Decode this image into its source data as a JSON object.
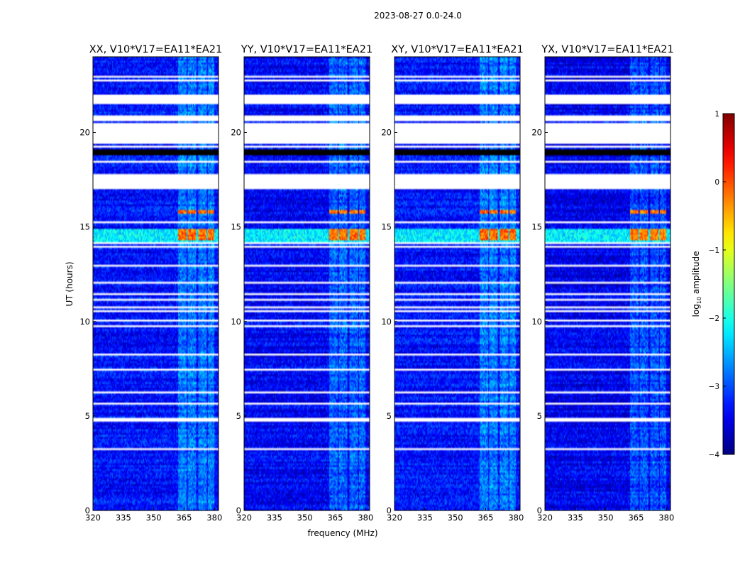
{
  "figure": {
    "suptitle": "2023-08-27 0.0-24.0"
  },
  "chart_data": {
    "type": "heatmap",
    "title": "2023-08-27 0.0-24.0",
    "xlabel": "frequency (MHz)",
    "ylabel": "UT (hours)",
    "xlim": [
      320,
      382
    ],
    "ylim": [
      0,
      24
    ],
    "xticks": [
      320,
      335,
      350,
      365,
      380
    ],
    "yticks": [
      0,
      5,
      10,
      15,
      20
    ],
    "colorbar": {
      "label_prefix": "log",
      "label_sub": "10",
      "label_suffix": " amplitude",
      "range": [
        -4,
        1
      ],
      "ticks": [
        1,
        0,
        -1,
        -2,
        -3,
        -4
      ],
      "tick_labels": [
        "1",
        "0",
        "−1",
        "−2",
        "−3",
        "−4"
      ],
      "colormap": "jet"
    },
    "panels": [
      {
        "title": "XX, V10*V17=EA11*EA21",
        "base_level": -3.3,
        "rfi_strength": 1.0
      },
      {
        "title": "YY, V10*V17=EA11*EA21",
        "base_level": -3.4,
        "rfi_strength": 0.9
      },
      {
        "title": "XY, V10*V17=EA11*EA21",
        "base_level": -3.3,
        "rfi_strength": 1.0
      },
      {
        "title": "YX, V10*V17=EA11*EA21",
        "base_level": -3.45,
        "rfi_strength": 0.8
      }
    ],
    "flagged_white_hours": [
      [
        21.5,
        22.0
      ],
      [
        20.7,
        20.9
      ],
      [
        19.4,
        20.5
      ],
      [
        17.0,
        17.8
      ],
      [
        14.1,
        14.2
      ],
      [
        6.2,
        6.3
      ],
      [
        4.7,
        4.9
      ]
    ],
    "flagged_black_hours": [
      [
        18.8,
        19.1
      ]
    ],
    "rfi_channels_mhz": [
      [
        362,
        366
      ],
      [
        367,
        371
      ],
      [
        372,
        376
      ],
      [
        377,
        380
      ]
    ],
    "rfi_burst_hours": [
      [
        14.3,
        14.9
      ],
      [
        15.7,
        15.9
      ]
    ],
    "broadband_band_hours": [
      [
        14.2,
        14.9
      ]
    ]
  }
}
